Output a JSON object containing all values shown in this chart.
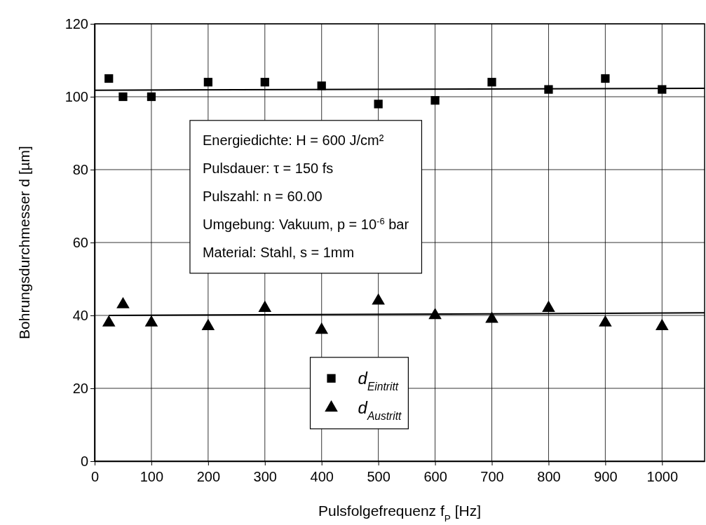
{
  "chart_data": {
    "type": "scatter",
    "xlabel": "Pulsfolgefrequenz f$_{P}$ [Hz]",
    "ylabel": "Bohrungsdurchmesser d [µm]",
    "xlim": [
      0,
      1075
    ],
    "ylim": [
      0,
      120
    ],
    "xticks": [
      0,
      100,
      200,
      300,
      400,
      500,
      600,
      700,
      800,
      900,
      1000
    ],
    "yticks": [
      0,
      20,
      40,
      60,
      80,
      100,
      120
    ],
    "grid": true,
    "legend": "bottom",
    "series": [
      {
        "name": "d$_{Eintritt}$",
        "color": "#000000",
        "marker": "square",
        "x": [
          25,
          50,
          100,
          200,
          300,
          400,
          500,
          600,
          700,
          800,
          900,
          1000
        ],
        "values": [
          105,
          100,
          100,
          104,
          104,
          103,
          98,
          99,
          104,
          102,
          105,
          102
        ]
      },
      {
        "name": "d$_{Austritt}$",
        "color": "#000000",
        "marker": "triangle",
        "x": [
          25,
          50,
          100,
          200,
          300,
          400,
          500,
          600,
          700,
          800,
          900,
          1000
        ],
        "values": [
          38,
          43,
          38,
          37,
          42,
          36,
          44,
          40,
          39,
          42,
          38,
          37
        ]
      },
      {
        "type": "line",
        "color": "#000000",
        "x": [
          0,
          1075
        ],
        "values": [
          101.8,
          102.3
        ]
      },
      {
        "type": "line",
        "color": "#000000",
        "x": [
          25,
          1075
        ],
        "values": [
          40,
          40.7
        ]
      }
    ],
    "annotations": [
      "Energiedichte: H = 600 J/cm²",
      "Pulsdauer: τ = 150 fs",
      "Pulszahl: n = 60.00",
      "Umgebung: Vakuum, p = 10$^{-6}$ bar",
      "Material: Stahl, s = 1mm"
    ]
  }
}
